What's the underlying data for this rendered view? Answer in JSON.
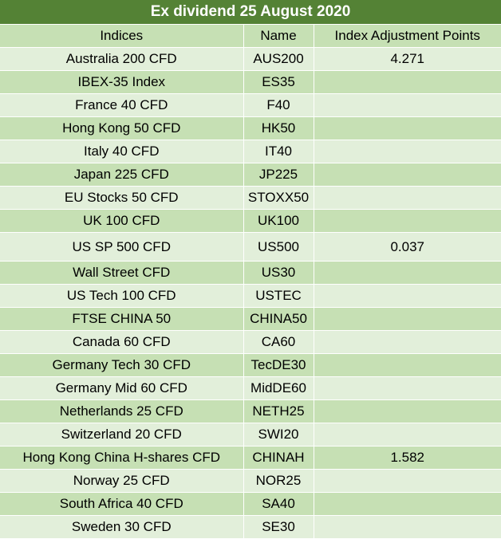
{
  "title": "Ex dividend 25 August 2020",
  "headers": [
    "Indices",
    "Name",
    "Index Adjustment Points"
  ],
  "rows": [
    {
      "index": "Australia 200 CFD",
      "name": "AUS200",
      "points": "4.271"
    },
    {
      "index": "IBEX-35 Index",
      "name": "ES35",
      "points": ""
    },
    {
      "index": "France 40 CFD",
      "name": "F40",
      "points": ""
    },
    {
      "index": "Hong Kong 50 CFD",
      "name": "HK50",
      "points": ""
    },
    {
      "index": "Italy 40 CFD",
      "name": "IT40",
      "points": ""
    },
    {
      "index": "Japan 225 CFD",
      "name": "JP225",
      "points": ""
    },
    {
      "index": "EU Stocks 50 CFD",
      "name": "STOXX50",
      "points": ""
    },
    {
      "index": "UK 100 CFD",
      "name": "UK100",
      "points": ""
    },
    {
      "index": "US SP 500 CFD",
      "name": "US500",
      "points": "0.037"
    },
    {
      "index": "Wall Street CFD",
      "name": "US30",
      "points": ""
    },
    {
      "index": "US Tech 100 CFD",
      "name": "USTEC",
      "points": ""
    },
    {
      "index": "FTSE CHINA 50",
      "name": "CHINA50",
      "points": ""
    },
    {
      "index": "Canada 60 CFD",
      "name": "CA60",
      "points": ""
    },
    {
      "index": "Germany Tech 30 CFD",
      "name": "TecDE30",
      "points": ""
    },
    {
      "index": "Germany Mid 60 CFD",
      "name": "MidDE60",
      "points": ""
    },
    {
      "index": "Netherlands 25 CFD",
      "name": "NETH25",
      "points": ""
    },
    {
      "index": "Switzerland 20 CFD",
      "name": "SWI20",
      "points": ""
    },
    {
      "index": "Hong Kong China H-shares CFD",
      "name": "CHINAH",
      "points": "1.582"
    },
    {
      "index": "Norway 25 CFD",
      "name": "NOR25",
      "points": ""
    },
    {
      "index": "South Africa 40 CFD",
      "name": "SA40",
      "points": ""
    },
    {
      "index": "Sweden 30 CFD",
      "name": "SE30",
      "points": ""
    }
  ],
  "colors": {
    "title_bg": "#548235",
    "band_dark": "#c6e0b4",
    "band_light": "#e2efda"
  }
}
